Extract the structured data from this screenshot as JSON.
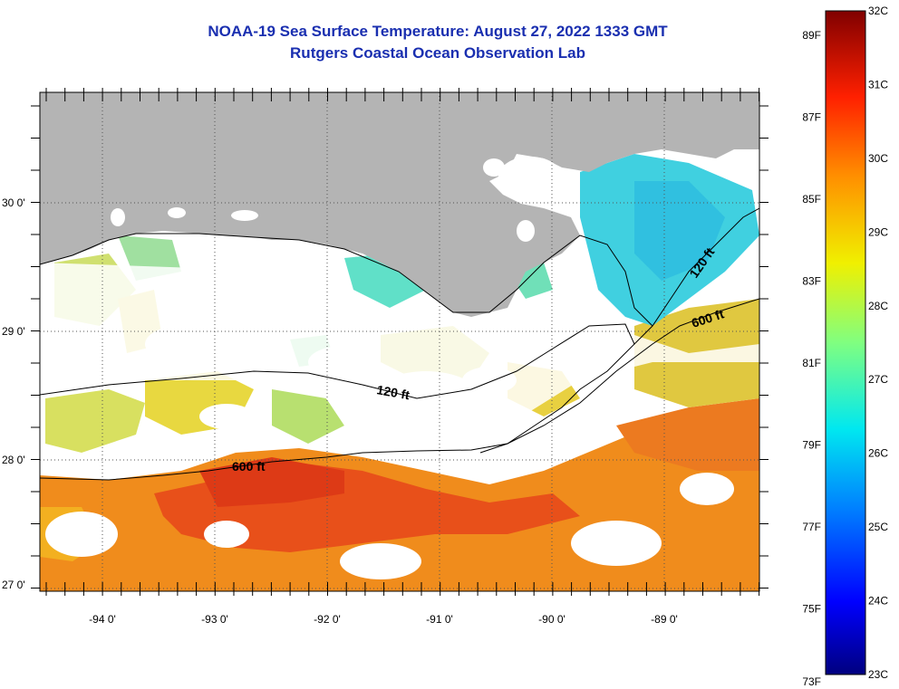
{
  "title": {
    "line1": "NOAA-19 Sea Surface Temperature:  August 27, 2022 1333 GMT",
    "line2": "Rutgers Coastal Ocean Observation Lab"
  },
  "map": {
    "lon_labels": [
      "-94 0'",
      "-93 0'",
      "-92 0'",
      "-91 0'",
      "-90 0'",
      "-89 0'"
    ],
    "lat_labels": [
      "30 0'",
      "29 0'",
      "28 0'",
      "27 0'"
    ],
    "contour_labels": [
      "120 ft",
      "120 ft",
      "600 ft",
      "600 ft"
    ],
    "land_color": "#b4b4b4",
    "cloud_color": "#ffffff"
  },
  "colorbar": {
    "fahrenheit_labels": [
      "89F",
      "87F",
      "85F",
      "83F",
      "81F",
      "79F",
      "77F",
      "75F",
      "73F"
    ],
    "celsius_labels": [
      "32C",
      "31C",
      "30C",
      "29C",
      "28C",
      "27C",
      "26C",
      "25C",
      "24C",
      "23C"
    ],
    "min_c": 23,
    "max_c": 32
  },
  "colors": {
    "title": "#1a2fb0",
    "warm": "#e8400c",
    "mid": "#f0d020",
    "cool": "#30d0e8"
  }
}
